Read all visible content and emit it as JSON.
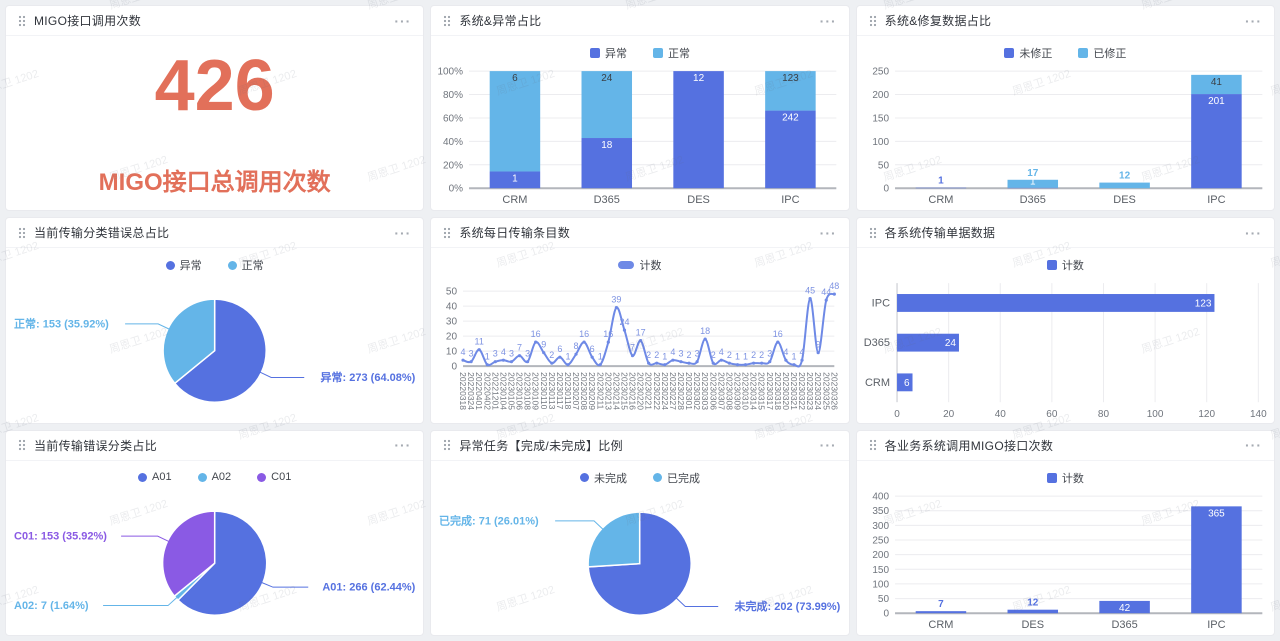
{
  "watermark": "周恩卫 1202",
  "icons": {
    "more": "···"
  },
  "colors": {
    "blue": "#5571e0",
    "light_blue": "#64b5e8",
    "purple": "#8a5ae4",
    "salmon": "#e2705a"
  },
  "kpi": {
    "value": "426",
    "label": "MIGO接口总调用次数",
    "color": "#e2705a"
  },
  "panels": [
    {
      "title": "MIGO接口调用次数",
      "chart": null
    },
    {
      "title": "系统&异常占比",
      "chart": 0
    },
    {
      "title": "系统&修复数据占比",
      "chart": 1
    },
    {
      "title": "当前传输分类错误总占比",
      "chart": 2
    },
    {
      "title": "系统每日传输条目数",
      "chart": 3
    },
    {
      "title": "各系统传输单据数据",
      "chart": 4
    },
    {
      "title": "当前传输错误分类占比",
      "chart": 5
    },
    {
      "title": "异常任务【完成/未完成】比例",
      "chart": 6
    },
    {
      "title": "各业务系统调用MIGO接口次数",
      "chart": 7
    }
  ],
  "chart_data": [
    {
      "type": "bar",
      "variant": "stacked-percent",
      "title": "系统&异常占比",
      "categories": [
        "CRM",
        "D365",
        "DES",
        "IPC"
      ],
      "series": [
        {
          "name": "异常",
          "color": "#5571e0",
          "values": [
            1,
            18,
            12,
            242
          ]
        },
        {
          "name": "正常",
          "color": "#64b5e8",
          "values": [
            6,
            24,
            0,
            123
          ]
        }
      ],
      "percent": true,
      "ylim": [
        0,
        100
      ],
      "yticks": [
        0,
        20,
        40,
        60,
        80,
        100
      ],
      "ytick_suffix": "%",
      "legend_position": "top",
      "grid": true
    },
    {
      "type": "bar",
      "variant": "stacked",
      "title": "系统&修复数据占比",
      "categories": [
        "CRM",
        "D365",
        "DES",
        "IPC"
      ],
      "series": [
        {
          "name": "未修正",
          "color": "#5571e0",
          "values": [
            1,
            1,
            0,
            201
          ]
        },
        {
          "name": "已修正",
          "color": "#64b5e8",
          "values": [
            0,
            17,
            12,
            41
          ]
        }
      ],
      "percent": false,
      "ylim": [
        0,
        250
      ],
      "yticks": [
        0,
        50,
        100,
        150,
        200,
        250
      ],
      "legend_position": "top",
      "grid": true
    },
    {
      "type": "pie",
      "title": "当前传输分类错误总占比",
      "slices": [
        {
          "name": "异常",
          "value": 273,
          "pct": "64.08%",
          "color": "#5571e0"
        },
        {
          "name": "正常",
          "value": 153,
          "pct": "35.92%",
          "color": "#64b5e8"
        }
      ],
      "legend_position": "top"
    },
    {
      "type": "line",
      "title": "系统每日传输条目数",
      "series_name": "计数",
      "color": "#6e89e6",
      "label_color": "#7e93e2",
      "smooth": true,
      "x": [
        "20220318",
        "20220324",
        "20220401",
        "20220402",
        "20221201",
        "20230104",
        "20230105",
        "20230106",
        "20230108",
        "20230109",
        "20230110",
        "20230113",
        "20230117",
        "20230118",
        "20230207",
        "20230208",
        "20230209",
        "20230211",
        "20230213",
        "20230214",
        "20230215",
        "20230216",
        "20230220",
        "20230221",
        "20230222",
        "20230224",
        "20230227",
        "20230228",
        "20230301",
        "20230302",
        "20230303",
        "20230306",
        "20230307",
        "20230308",
        "20230309",
        "20230310",
        "20230314",
        "20230315",
        "20230317",
        "20230318",
        "20230320",
        "20230321",
        "20230322",
        "20230323",
        "20230324",
        "20230325",
        "20230326"
      ],
      "values": [
        4,
        3,
        11,
        1,
        3,
        4,
        3,
        7,
        3,
        16,
        9,
        2,
        6,
        1,
        8,
        16,
        6,
        1,
        16,
        39,
        24,
        7,
        17,
        2,
        2,
        1,
        4,
        3,
        2,
        3,
        18,
        2,
        4,
        2,
        1,
        1,
        2,
        2,
        3,
        16,
        4,
        1,
        4,
        45,
        9,
        44,
        48
      ],
      "ylim": [
        0,
        50
      ],
      "yticks": [
        0,
        10,
        20,
        30,
        40,
        50
      ],
      "legend_position": "top",
      "grid": true
    },
    {
      "type": "bar",
      "variant": "horizontal",
      "title": "各系统传输单据数据",
      "series_name": "计数",
      "color": "#5571e0",
      "categories": [
        "IPC",
        "D365",
        "CRM"
      ],
      "values": [
        123,
        24,
        6
      ],
      "xlim": [
        0,
        140
      ],
      "xticks": [
        0,
        20,
        40,
        60,
        80,
        100,
        120,
        140
      ],
      "legend_position": "top",
      "grid": true
    },
    {
      "type": "pie",
      "title": "当前传输错误分类占比",
      "slices": [
        {
          "name": "A01",
          "value": 266,
          "pct": "62.44%",
          "color": "#5571e0"
        },
        {
          "name": "A02",
          "value": 7,
          "pct": "1.64%",
          "color": "#64b5e8"
        },
        {
          "name": "C01",
          "value": 153,
          "pct": "35.92%",
          "color": "#8a5ae4"
        }
      ],
      "legend_position": "top"
    },
    {
      "type": "pie",
      "title": "异常任务【完成/未完成】比例",
      "slices": [
        {
          "name": "未完成",
          "value": 202,
          "pct": "73.99%",
          "color": "#5571e0"
        },
        {
          "name": "已完成",
          "value": 71,
          "pct": "26.01%",
          "color": "#64b5e8"
        }
      ],
      "legend_position": "top"
    },
    {
      "type": "bar",
      "variant": "single",
      "title": "各业务系统调用MIGO接口次数",
      "series_name": "计数",
      "color": "#5571e0",
      "categories": [
        "CRM",
        "DES",
        "D365",
        "IPC"
      ],
      "values": [
        7,
        12,
        42,
        365
      ],
      "ylim": [
        0,
        400
      ],
      "yticks": [
        0,
        50,
        100,
        150,
        200,
        250,
        300,
        350,
        400
      ],
      "legend_position": "top",
      "grid": true
    }
  ]
}
